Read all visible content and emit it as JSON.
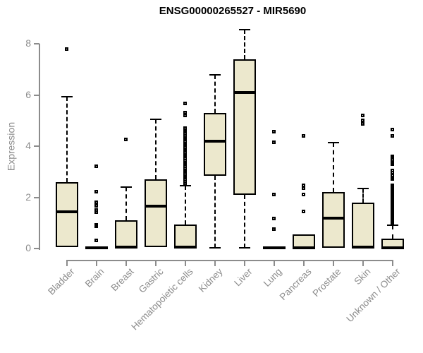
{
  "page": {
    "background_color": "#ffffff"
  },
  "chart_data": {
    "type": "boxplot",
    "title": "ENSG00000265527 - MIR5690",
    "xlabel": "",
    "ylabel": "Expression",
    "ylim": [
      0,
      8.6
    ],
    "yticks": [
      0,
      2,
      4,
      6,
      8
    ],
    "grid": false,
    "legend": "none",
    "colors": {
      "box_fill": "#ece8cd",
      "box_line": "#000000",
      "median": "#000000",
      "axis": "#8c8c8c",
      "tick_label": "#8c8c8c",
      "title": "#000000"
    },
    "categories": [
      "Bladder",
      "Brain",
      "Breast",
      "Gastric",
      "Hematopoietic cells",
      "Kidney",
      "Liver",
      "Lung",
      "Pancreas",
      "Prostate",
      "Skin",
      "Unknown / Other"
    ],
    "boxes": [
      {
        "category": "Bladder",
        "whisker_low": 0.05,
        "q1": 0.05,
        "median": 1.45,
        "q3": 2.6,
        "whisker_high": 5.95,
        "outliers": [
          7.8
        ]
      },
      {
        "category": "Brain",
        "whisker_low": 0,
        "q1": 0,
        "median": 0.03,
        "q3": 0.07,
        "whisker_high": 0.07,
        "outliers": [
          3.2,
          2.2,
          1.8,
          1.65,
          1.5,
          1.4,
          0.9,
          0.85,
          0.3
        ]
      },
      {
        "category": "Breast",
        "whisker_low": 0,
        "q1": 0,
        "median": 0.05,
        "q3": 1.1,
        "whisker_high": 2.4,
        "outliers": [
          4.25
        ]
      },
      {
        "category": "Gastric",
        "whisker_low": 0.05,
        "q1": 0.05,
        "median": 1.65,
        "q3": 2.7,
        "whisker_high": 5.05,
        "outliers": []
      },
      {
        "category": "Hematopoietic cells",
        "whisker_low": 0,
        "q1": 0,
        "median": 0.05,
        "q3": 0.95,
        "whisker_high": 2.45,
        "outliers": [
          5.65,
          5.3,
          5.2,
          4.7,
          4.62,
          4.55,
          4.48,
          4.4,
          4.32,
          4.25,
          4.18,
          4.1,
          4.02,
          3.95,
          3.88,
          3.8,
          3.72,
          3.65,
          3.58,
          3.5,
          3.42,
          3.35,
          3.28,
          3.2,
          3.12,
          3.05,
          2.98,
          2.9,
          2.82,
          2.75,
          2.68,
          2.6,
          2.52
        ]
      },
      {
        "category": "Kidney",
        "whisker_low": 0.02,
        "q1": 2.85,
        "median": 4.2,
        "q3": 5.3,
        "whisker_high": 6.8,
        "outliers": []
      },
      {
        "category": "Liver",
        "whisker_low": 0.02,
        "q1": 2.1,
        "median": 6.1,
        "q3": 7.4,
        "whisker_high": 8.55,
        "outliers": []
      },
      {
        "category": "Lung",
        "whisker_low": 0,
        "q1": 0,
        "median": 0.03,
        "q3": 0.07,
        "whisker_high": 0.07,
        "outliers": [
          4.55,
          4.15,
          2.1,
          1.15,
          0.75
        ]
      },
      {
        "category": "Pancreas",
        "whisker_low": 0,
        "q1": 0,
        "median": 0.04,
        "q3": 0.55,
        "whisker_high": 0.55,
        "outliers": [
          4.4,
          2.45,
          2.35,
          2.1,
          1.45
        ]
      },
      {
        "category": "Prostate",
        "whisker_low": 0.02,
        "q1": 0.02,
        "median": 1.2,
        "q3": 2.2,
        "whisker_high": 4.15,
        "outliers": []
      },
      {
        "category": "Skin",
        "whisker_low": 0,
        "q1": 0,
        "median": 0.05,
        "q3": 1.8,
        "whisker_high": 2.35,
        "outliers": [
          5.2,
          5.0,
          4.85
        ]
      },
      {
        "category": "Unknown / Other",
        "whisker_low": 0,
        "q1": 0,
        "median": 0.04,
        "q3": 0.4,
        "whisker_high": 0.9,
        "outliers": [
          4.65,
          4.4,
          3.6,
          3.55,
          3.45,
          3.35,
          3.3,
          3.05,
          2.95,
          2.85,
          2.75,
          2.7,
          2.45,
          2.4,
          2.35,
          2.3,
          2.25,
          2.2,
          2.15,
          2.1,
          2.05,
          2.0,
          1.95,
          1.9,
          1.85,
          1.8,
          1.75,
          1.7,
          1.65,
          1.6,
          1.55,
          1.5,
          1.45,
          1.4,
          1.35,
          1.3,
          1.25,
          1.2,
          1.15,
          1.1,
          1.05,
          1.0
        ]
      }
    ]
  }
}
